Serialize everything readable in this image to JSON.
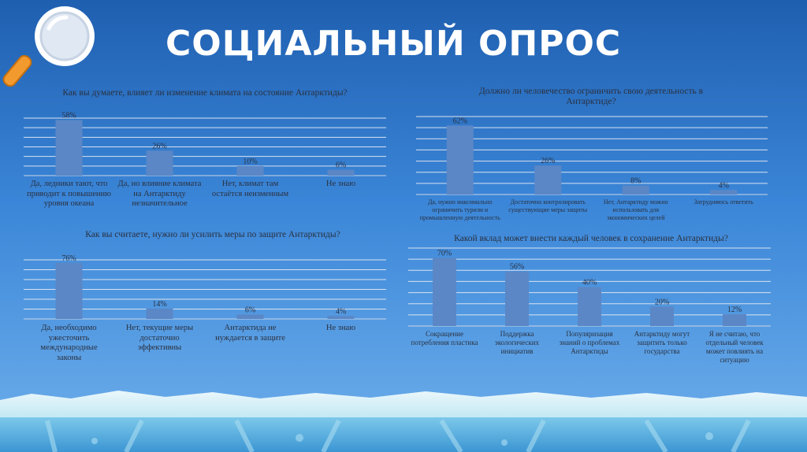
{
  "page": {
    "title": "СОЦИАЛЬНЫЙ ОПРОС"
  },
  "icons": {
    "magnifier": "magnifier-icon"
  },
  "colors": {
    "bar": "#5b87c6",
    "grid": "#d9e3f0",
    "text": "#2a3140"
  },
  "chart_data": [
    {
      "type": "bar",
      "title": "Как вы думаете, влияет ли изменение климата на состояние Антарктиды?",
      "categories": [
        "Да, ледники тают, что приводит к повышению уровня океана",
        "Да, но влияние климата на Антарктиду незначительное",
        "Нет, климат там остаётся неизменным",
        "Не знаю"
      ],
      "values": [
        58,
        26,
        10,
        6
      ],
      "value_labels": [
        "58%",
        "26%",
        "10%",
        "6%"
      ],
      "ylim": [
        0,
        60
      ],
      "grid": true
    },
    {
      "type": "bar",
      "title": "Должно ли человечество ограничить свою деятельность в Антарктиде?",
      "categories": [
        "Да, нужно максимально ограничить туризм и промышленную деятельность",
        "Достаточно контролировать существующие меры защиты",
        "Нет, Антарктиду можно использовать для экономических целей",
        "Затрудняюсь ответить"
      ],
      "values": [
        62,
        26,
        8,
        4
      ],
      "value_labels": [
        "62%",
        "26%",
        "8%",
        "4%"
      ],
      "ylim": [
        0,
        70
      ],
      "grid": true
    },
    {
      "type": "bar",
      "title": "Как вы считаете, нужно ли усилить меры по защите Антарктиды?",
      "categories": [
        "Да, необходимо ужесточить международные законы",
        "Нет, текущие меры достаточно эффективны",
        "Антарктида не нуждается в защите",
        "Не знаю"
      ],
      "values": [
        76,
        14,
        6,
        4
      ],
      "value_labels": [
        "76%",
        "14%",
        "6%",
        "4%"
      ],
      "ylim": [
        0,
        80
      ],
      "grid": true
    },
    {
      "type": "bar",
      "title": "Какой вклад может внести каждый человек в сохранение Антарктиды?",
      "categories": [
        "Сокращение потребления пластика",
        "Поддержка экологических инициатив",
        "Популяризация знаний о проблемах Антарктиды",
        "Антарктиду могут защитить только государства",
        "Я не считаю, что отдельный человек может повлиять на ситуацию"
      ],
      "values": [
        70,
        56,
        40,
        20,
        12
      ],
      "value_labels": [
        "70%",
        "56%",
        "40%",
        "20%",
        "12%"
      ],
      "ylim": [
        0,
        80
      ],
      "grid": true
    }
  ]
}
